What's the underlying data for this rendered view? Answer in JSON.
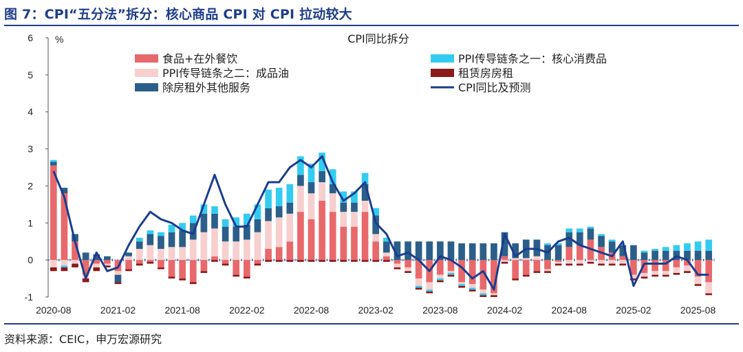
{
  "header": {
    "title": "图 7：CPI“五分法”拆分：核心商品 CPI 对 CPI 拉动较大"
  },
  "footer": {
    "source": "资料来源：CEIC，申万宏源研究"
  },
  "colors": {
    "accent": "#1f3d8a",
    "food": "#e8696b",
    "ppi_core": "#33ccf0",
    "ppi_oil": "#f7cfcf",
    "rent": "#8b1a1a",
    "services": "#2b5f8a",
    "cpi_line": "#1a3d8f"
  },
  "chart_data": {
    "type": "bar",
    "title": "CPI同比拆分",
    "ylabel": "%",
    "ylim": [
      -1,
      6
    ],
    "yticks": [
      -1,
      0,
      1,
      2,
      3,
      4,
      5,
      6
    ],
    "x_tick_labels": [
      "2020-08",
      "2021-02",
      "2021-08",
      "2022-02",
      "2022-08",
      "2023-02",
      "2023-08",
      "2024-02",
      "2024-08",
      "2025-02",
      "2025-08"
    ],
    "categories": [
      "2020-08",
      "2020-09",
      "2020-10",
      "2020-11",
      "2020-12",
      "2021-01",
      "2021-02",
      "2021-03",
      "2021-04",
      "2021-05",
      "2021-06",
      "2021-07",
      "2021-08",
      "2021-09",
      "2021-10",
      "2021-11",
      "2021-12",
      "2022-01",
      "2022-02",
      "2022-03",
      "2022-04",
      "2022-05",
      "2022-06",
      "2022-07",
      "2022-08",
      "2022-09",
      "2022-10",
      "2022-11",
      "2022-12",
      "2023-01",
      "2023-02",
      "2023-03",
      "2023-04",
      "2023-05",
      "2023-06",
      "2023-07",
      "2023-08",
      "2023-09",
      "2023-10",
      "2023-11",
      "2023-12",
      "2024-01",
      "2024-02",
      "2024-03",
      "2024-04",
      "2024-05",
      "2024-06",
      "2024-07",
      "2024-08",
      "2024-09",
      "2024-10",
      "2024-11",
      "2024-12",
      "2025-01",
      "2025-02",
      "2025-03",
      "2025-04",
      "2025-05",
      "2025-06",
      "2025-07",
      "2025-08",
      "2025-09"
    ],
    "legend": [
      "食品+在外餐饮",
      "PPI传导链条之二：成品油",
      "除房租外其他服务",
      "PPI传导链条之一：核心消费品",
      "租赁房房租",
      "CPI同比及预测"
    ],
    "series": [
      {
        "name": "食品+在外餐饮",
        "kind": "bar",
        "color": "#e8696b",
        "values": [
          2.55,
          1.8,
          0.5,
          -0.4,
          -0.1,
          -0.1,
          -0.3,
          -0.25,
          -0.1,
          -0.05,
          -0.2,
          -0.45,
          -0.5,
          -0.6,
          -0.3,
          0.1,
          -0.1,
          -0.4,
          -0.45,
          -0.1,
          0.3,
          0.35,
          0.5,
          1.3,
          1.1,
          1.6,
          1.3,
          0.9,
          0.9,
          1.3,
          0.5,
          0.1,
          -0.1,
          -0.2,
          -0.5,
          -0.6,
          -0.4,
          -0.3,
          -0.6,
          -0.65,
          -0.8,
          -0.9,
          0.1,
          -0.5,
          -0.4,
          -0.3,
          -0.25,
          -0.05,
          0.35,
          0.4,
          0.55,
          0.35,
          0.2,
          0.1,
          -0.4,
          -0.35,
          -0.3,
          -0.3,
          -0.2,
          -0.15,
          -0.45,
          -0.6
        ]
      },
      {
        "name": "PPI传导链条之二：成品油",
        "kind": "bar",
        "color": "#f7cfcf",
        "values": [
          -0.2,
          -0.15,
          -0.1,
          -0.1,
          -0.1,
          -0.05,
          -0.1,
          0.1,
          0.3,
          0.4,
          0.3,
          0.35,
          0.35,
          0.55,
          0.75,
          0.75,
          0.5,
          0.5,
          0.55,
          0.75,
          0.75,
          0.8,
          0.75,
          0.7,
          0.7,
          0.5,
          0.5,
          0.4,
          0.4,
          0.3,
          0.2,
          0.1,
          -0.1,
          -0.1,
          -0.2,
          -0.2,
          -0.1,
          -0.05,
          -0.05,
          -0.1,
          -0.1,
          -0.05,
          -0.05,
          0.05,
          0.05,
          0.1,
          -0.05,
          -0.05,
          -0.1,
          -0.1,
          -0.05,
          -0.1,
          -0.1,
          -0.1,
          -0.1,
          -0.1,
          -0.1,
          -0.1,
          -0.15,
          -0.15,
          -0.2,
          -0.3
        ]
      },
      {
        "name": "除房租外其他服务",
        "kind": "bar",
        "color": "#2b5f8a",
        "values": [
          0.1,
          0.15,
          0.2,
          0.2,
          0.15,
          0.1,
          -0.2,
          0.1,
          0.2,
          0.3,
          0.35,
          0.4,
          0.45,
          0.45,
          0.5,
          0.4,
          0.4,
          0.4,
          0.4,
          0.35,
          0.35,
          0.3,
          0.3,
          0.3,
          0.3,
          0.3,
          0.25,
          0.25,
          0.25,
          0.45,
          0.5,
          0.3,
          0.5,
          0.5,
          0.5,
          0.5,
          0.5,
          0.5,
          0.45,
          0.45,
          0.45,
          0.45,
          0.65,
          0.4,
          0.5,
          0.45,
          0.4,
          0.4,
          0.4,
          0.35,
          0.3,
          0.3,
          0.3,
          0.3,
          0.4,
          0.2,
          0.25,
          0.25,
          0.25,
          0.25,
          0.25,
          0.25
        ]
      },
      {
        "name": "PPI传导链条之一：核心消费品",
        "kind": "bar",
        "color": "#33ccf0",
        "values": [
          0.05,
          -0.05,
          0,
          0,
          0,
          0,
          0,
          0,
          0.1,
          0.1,
          0.1,
          0.2,
          0.2,
          0.2,
          0.25,
          0.2,
          0.2,
          0.25,
          0.3,
          0.4,
          0.5,
          0.5,
          0.5,
          0.5,
          0.5,
          0.5,
          0.4,
          0.3,
          0.3,
          0.3,
          0.2,
          0.1,
          0,
          0,
          -0.05,
          -0.05,
          -0.05,
          -0.05,
          -0.05,
          -0.05,
          -0.05,
          0,
          0,
          0,
          0,
          0,
          0.05,
          0.05,
          0.1,
          0.1,
          0.05,
          0.05,
          0.05,
          0,
          0,
          0.05,
          0.05,
          0.1,
          0.15,
          0.2,
          0.25,
          0.3
        ]
      },
      {
        "name": "租赁房房租",
        "kind": "bar",
        "color": "#8b1a1a",
        "values": [
          -0.1,
          -0.1,
          -0.1,
          -0.1,
          -0.1,
          -0.05,
          -0.05,
          -0.05,
          -0.05,
          -0.05,
          -0.05,
          -0.05,
          -0.05,
          -0.05,
          -0.05,
          -0.05,
          -0.05,
          -0.05,
          -0.05,
          -0.05,
          -0.05,
          -0.05,
          -0.05,
          -0.05,
          -0.05,
          -0.05,
          -0.05,
          -0.05,
          -0.05,
          -0.05,
          -0.05,
          -0.05,
          -0.05,
          -0.05,
          -0.05,
          -0.05,
          -0.05,
          -0.05,
          -0.05,
          -0.05,
          -0.05,
          -0.05,
          -0.05,
          -0.05,
          -0.05,
          -0.05,
          -0.05,
          -0.05,
          -0.05,
          -0.05,
          -0.05,
          -0.05,
          -0.05,
          -0.05,
          -0.05,
          -0.05,
          -0.05,
          -0.05,
          -0.05,
          -0.05,
          -0.05,
          -0.05
        ]
      },
      {
        "name": "CPI同比及预测",
        "kind": "line",
        "color": "#1a3d8f",
        "values": [
          2.4,
          1.7,
          0.5,
          -0.5,
          0.2,
          -0.3,
          -0.2,
          0.4,
          0.9,
          1.3,
          1.1,
          1.0,
          0.8,
          0.7,
          1.5,
          2.3,
          1.5,
          0.9,
          0.9,
          1.5,
          2.1,
          2.1,
          2.5,
          2.7,
          2.5,
          2.8,
          2.1,
          1.6,
          1.8,
          2.1,
          1.0,
          0.7,
          0.1,
          0.2,
          0.0,
          -0.3,
          0.1,
          0.0,
          -0.2,
          -0.5,
          -0.3,
          -0.8,
          0.7,
          0.1,
          0.3,
          0.3,
          0.2,
          0.5,
          0.6,
          0.4,
          0.3,
          0.2,
          0.1,
          0.5,
          -0.7,
          -0.1,
          -0.1,
          -0.1,
          0.1,
          0.0,
          -0.4,
          -0.4
        ]
      }
    ],
    "grid": false,
    "legend_position": "top"
  }
}
